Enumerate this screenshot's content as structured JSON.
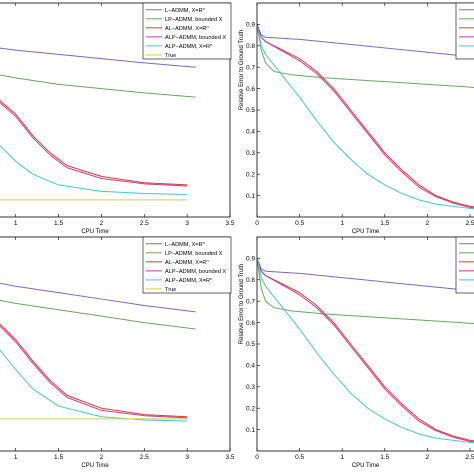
{
  "chart_data": [
    {
      "type": "line",
      "xlabel": "CPU Time",
      "ylabel": "",
      "xlim": [
        0,
        3.5
      ],
      "ylim": [
        0,
        1
      ],
      "xticks": [
        "1",
        "1.5",
        "2",
        "2.5",
        "3",
        "3.5"
      ],
      "xtick_values": [
        1,
        1.5,
        2,
        2.5,
        3,
        3.5
      ],
      "yticks": [],
      "legend": {
        "position": "top-right",
        "entries": [
          "L−ADMM, X=R^n",
          "LP−ADMM, bounded X",
          "AL−ADMM, X=R^n",
          "ALP−ADMM, bounded X",
          "ALP−ADMM, X=R^n",
          "True"
        ]
      },
      "series": [
        {
          "name": "L−ADMM, X=R^n",
          "color": "#7b68c9",
          "x": [
            0.6,
            1.0,
            1.5,
            2.0,
            2.5,
            3.1
          ],
          "y": [
            0.8,
            0.78,
            0.76,
            0.74,
            0.72,
            0.7
          ]
        },
        {
          "name": "LP−ADMM, bounded X",
          "color": "#6aa860",
          "x": [
            0.6,
            1.0,
            1.5,
            2.0,
            2.5,
            3.1
          ],
          "y": [
            0.68,
            0.65,
            0.62,
            0.6,
            0.58,
            0.56
          ]
        },
        {
          "name": "AL−ADMM, X=R^n",
          "color": "#e03a3a",
          "x": [
            0.6,
            0.8,
            1.0,
            1.2,
            1.4,
            1.6,
            2.0,
            2.5,
            3.0
          ],
          "y": [
            0.58,
            0.55,
            0.48,
            0.38,
            0.3,
            0.24,
            0.19,
            0.16,
            0.15
          ]
        },
        {
          "name": "ALP−ADMM, bounded X",
          "color": "#c83a9a",
          "x": [
            0.6,
            0.8,
            1.0,
            1.2,
            1.4,
            1.6,
            2.0,
            2.5,
            3.0
          ],
          "y": [
            0.57,
            0.54,
            0.47,
            0.37,
            0.29,
            0.23,
            0.18,
            0.155,
            0.145
          ]
        },
        {
          "name": "ALP−ADMM, X=R^n",
          "color": "#46c8d0",
          "x": [
            0.6,
            0.8,
            1.0,
            1.2,
            1.5,
            2.0,
            2.5,
            3.0
          ],
          "y": [
            0.38,
            0.34,
            0.26,
            0.2,
            0.15,
            0.12,
            0.11,
            0.105
          ]
        },
        {
          "name": "True",
          "color": "#d8d040",
          "x": [
            0.6,
            1.0,
            2.0,
            3.0
          ],
          "y": [
            0.08,
            0.08,
            0.08,
            0.08
          ]
        }
      ]
    },
    {
      "type": "line",
      "xlabel": "CPU Time",
      "ylabel": "Relative Error to Ground Truth",
      "xlim": [
        0,
        2.7
      ],
      "ylim": [
        0,
        1
      ],
      "xticks": [
        "0",
        "0.5",
        "1",
        "1.5",
        "2",
        "2.5"
      ],
      "xtick_values": [
        0,
        0.5,
        1,
        1.5,
        2,
        2.5
      ],
      "yticks": [
        "0.1",
        "0.2",
        "0.3",
        "0.4",
        "0.5",
        "0.6",
        "0.7",
        "0.8",
        "0.9"
      ],
      "ytick_values": [
        0.1,
        0.2,
        0.3,
        0.4,
        0.5,
        0.6,
        0.7,
        0.8,
        0.9
      ],
      "legend": {
        "position": "top-right",
        "entries": []
      },
      "series": [
        {
          "color": "#7b68c9",
          "x": [
            0,
            0.05,
            0.1,
            0.5,
            1.0,
            1.5,
            2.0,
            2.5,
            2.7
          ],
          "y": [
            0.9,
            0.85,
            0.84,
            0.83,
            0.81,
            0.79,
            0.77,
            0.75,
            0.74
          ]
        },
        {
          "color": "#6aa860",
          "x": [
            0,
            0.05,
            0.1,
            0.2,
            0.4,
            0.8,
            1.2,
            1.6,
            2.0,
            2.4,
            2.7
          ],
          "y": [
            0.9,
            0.78,
            0.72,
            0.68,
            0.665,
            0.65,
            0.64,
            0.63,
            0.62,
            0.61,
            0.6
          ]
        },
        {
          "color": "#e03a3a",
          "x": [
            0,
            0.05,
            0.1,
            0.3,
            0.5,
            0.7,
            0.9,
            1.1,
            1.3,
            1.5,
            1.7,
            1.9,
            2.1,
            2.3,
            2.5,
            2.7
          ],
          "y": [
            0.9,
            0.84,
            0.82,
            0.78,
            0.74,
            0.68,
            0.6,
            0.5,
            0.4,
            0.3,
            0.22,
            0.15,
            0.1,
            0.07,
            0.05,
            0.04
          ]
        },
        {
          "color": "#c83a9a",
          "x": [
            0,
            0.05,
            0.1,
            0.3,
            0.5,
            0.7,
            0.9,
            1.1,
            1.3,
            1.5,
            1.7,
            1.9,
            2.1,
            2.3,
            2.5,
            2.7
          ],
          "y": [
            0.9,
            0.84,
            0.82,
            0.775,
            0.73,
            0.67,
            0.59,
            0.49,
            0.39,
            0.29,
            0.21,
            0.14,
            0.095,
            0.065,
            0.045,
            0.035
          ]
        },
        {
          "color": "#46c8d0",
          "x": [
            0,
            0.05,
            0.1,
            0.3,
            0.5,
            0.7,
            0.9,
            1.1,
            1.3,
            1.5,
            1.7,
            1.9,
            2.1,
            2.3,
            2.5,
            2.7
          ],
          "y": [
            0.9,
            0.8,
            0.76,
            0.66,
            0.56,
            0.45,
            0.35,
            0.27,
            0.2,
            0.15,
            0.11,
            0.08,
            0.06,
            0.05,
            0.04,
            0.035
          ]
        }
      ]
    },
    {
      "type": "line",
      "xlabel": "CPU Time",
      "ylabel": "",
      "xlim": [
        0,
        3.5
      ],
      "ylim": [
        0,
        1
      ],
      "xticks": [
        "1",
        "1.5",
        "2",
        "2.5",
        "3",
        "3.5"
      ],
      "xtick_values": [
        1,
        1.5,
        2,
        2.5,
        3,
        3.5
      ],
      "yticks": [],
      "legend": {
        "position": "top-right",
        "entries": [
          "L−ADMM, X=R^n",
          "LP−ADMM, bounded X",
          "AL−ADMM, X=R^n",
          "ALP−ADMM, bounded X",
          "ALP−ADMM, X=R^n",
          "True"
        ]
      },
      "series": [
        {
          "name": "L−ADMM, X=R^n",
          "color": "#7b68c9",
          "x": [
            0.6,
            1.0,
            1.5,
            2.0,
            2.5,
            3.1
          ],
          "y": [
            0.8,
            0.77,
            0.74,
            0.71,
            0.68,
            0.65
          ]
        },
        {
          "name": "LP−ADMM, bounded X",
          "color": "#6aa860",
          "x": [
            0.6,
            1.0,
            1.5,
            2.0,
            2.5,
            3.1
          ],
          "y": [
            0.72,
            0.69,
            0.66,
            0.63,
            0.6,
            0.57
          ]
        },
        {
          "name": "AL−ADMM, X=R^n",
          "color": "#e03a3a",
          "x": [
            0.6,
            0.8,
            1.0,
            1.2,
            1.4,
            1.6,
            2.0,
            2.5,
            3.0
          ],
          "y": [
            0.64,
            0.6,
            0.52,
            0.42,
            0.33,
            0.26,
            0.2,
            0.17,
            0.16
          ]
        },
        {
          "name": "ALP−ADMM, bounded X",
          "color": "#c83a9a",
          "x": [
            0.6,
            0.8,
            1.0,
            1.2,
            1.4,
            1.6,
            2.0,
            2.5,
            3.0
          ],
          "y": [
            0.63,
            0.59,
            0.51,
            0.41,
            0.32,
            0.25,
            0.19,
            0.165,
            0.155
          ]
        },
        {
          "name": "ALP−ADMM, X=R^n",
          "color": "#46c8d0",
          "x": [
            0.6,
            0.8,
            1.0,
            1.2,
            1.5,
            2.0,
            2.5,
            3.0
          ],
          "y": [
            0.55,
            0.48,
            0.38,
            0.29,
            0.21,
            0.16,
            0.145,
            0.14
          ]
        },
        {
          "name": "True",
          "color": "#d8d040",
          "x": [
            0.6,
            1.0,
            2.0,
            3.0
          ],
          "y": [
            0.15,
            0.15,
            0.15,
            0.15
          ]
        }
      ]
    },
    {
      "type": "line",
      "xlabel": "CPU Time",
      "ylabel": "Relative Error to Ground Truth",
      "xlim": [
        0,
        2.7
      ],
      "ylim": [
        0,
        1
      ],
      "xticks": [
        "0",
        "0.5",
        "1",
        "1.5",
        "2",
        "2.5"
      ],
      "xtick_values": [
        0,
        0.5,
        1,
        1.5,
        2,
        2.5
      ],
      "yticks": [
        "0.1",
        "0.2",
        "0.3",
        "0.4",
        "0.5",
        "0.6",
        "0.7",
        "0.8",
        "0.9"
      ],
      "ytick_values": [
        0.1,
        0.2,
        0.3,
        0.4,
        0.5,
        0.6,
        0.7,
        0.8,
        0.9
      ],
      "legend": {
        "position": "top-right",
        "entries": []
      },
      "series": [
        {
          "color": "#7b68c9",
          "x": [
            0,
            0.05,
            0.1,
            0.5,
            1.0,
            1.5,
            2.0,
            2.5,
            2.7
          ],
          "y": [
            0.9,
            0.85,
            0.84,
            0.83,
            0.81,
            0.79,
            0.77,
            0.75,
            0.74
          ]
        },
        {
          "color": "#6aa860",
          "x": [
            0,
            0.05,
            0.1,
            0.2,
            0.4,
            0.8,
            1.2,
            1.6,
            2.0,
            2.4,
            2.7
          ],
          "y": [
            0.9,
            0.76,
            0.7,
            0.67,
            0.655,
            0.64,
            0.63,
            0.62,
            0.61,
            0.6,
            0.59
          ]
        },
        {
          "color": "#e03a3a",
          "x": [
            0,
            0.05,
            0.1,
            0.3,
            0.5,
            0.7,
            0.9,
            1.1,
            1.3,
            1.5,
            1.7,
            1.9,
            2.1,
            2.3,
            2.5,
            2.7
          ],
          "y": [
            0.9,
            0.84,
            0.82,
            0.78,
            0.74,
            0.68,
            0.6,
            0.5,
            0.4,
            0.3,
            0.22,
            0.15,
            0.1,
            0.07,
            0.05,
            0.04
          ]
        },
        {
          "color": "#c83a9a",
          "x": [
            0,
            0.05,
            0.1,
            0.3,
            0.5,
            0.7,
            0.9,
            1.1,
            1.3,
            1.5,
            1.7,
            1.9,
            2.1,
            2.3,
            2.5,
            2.7
          ],
          "y": [
            0.9,
            0.84,
            0.82,
            0.775,
            0.73,
            0.67,
            0.59,
            0.49,
            0.39,
            0.29,
            0.21,
            0.14,
            0.095,
            0.065,
            0.045,
            0.035
          ]
        },
        {
          "color": "#46c8d0",
          "x": [
            0,
            0.05,
            0.1,
            0.3,
            0.5,
            0.7,
            0.9,
            1.1,
            1.3,
            1.5,
            1.7,
            1.9,
            2.1,
            2.3,
            2.5,
            2.7
          ],
          "y": [
            0.9,
            0.81,
            0.77,
            0.67,
            0.57,
            0.46,
            0.36,
            0.27,
            0.2,
            0.15,
            0.11,
            0.08,
            0.06,
            0.05,
            0.04,
            0.035
          ]
        }
      ]
    }
  ]
}
